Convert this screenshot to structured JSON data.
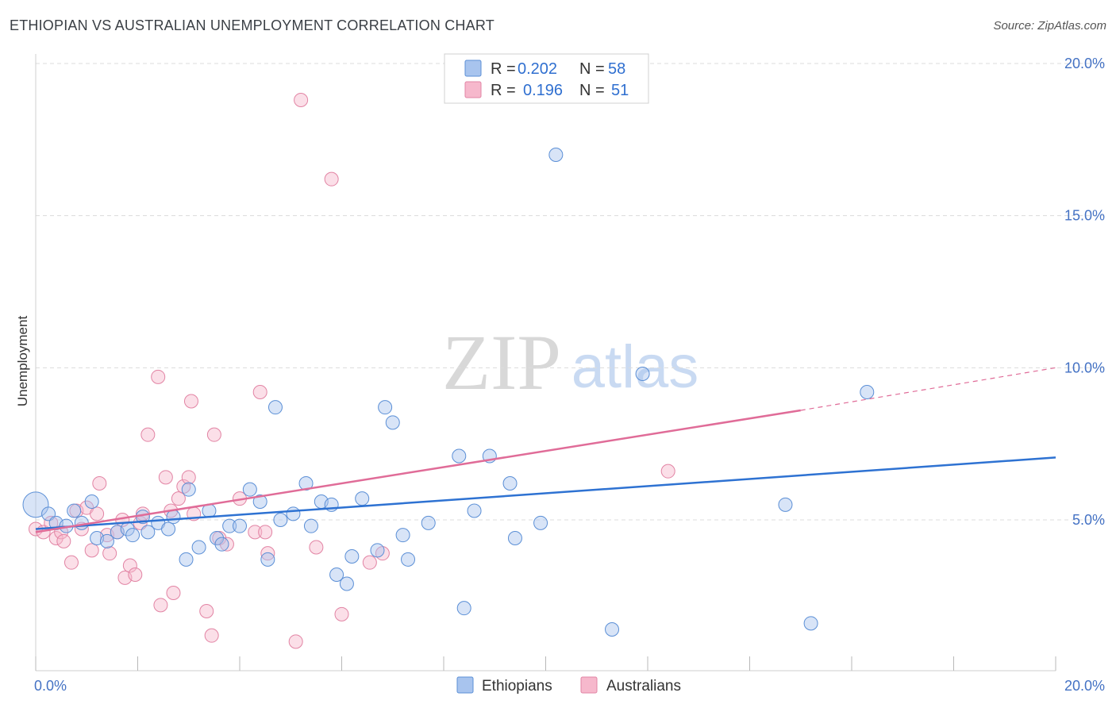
{
  "title": "ETHIOPIAN VS AUSTRALIAN UNEMPLOYMENT CORRELATION CHART",
  "source": "Source: ZipAtlas.com",
  "watermark": {
    "zip": "ZIP",
    "atlas": "atlas"
  },
  "colors": {
    "blue_fill": "#a8c4ee",
    "blue_stroke": "#5b8fd6",
    "blue_line": "#2e72d2",
    "pink_fill": "#f6b8cc",
    "pink_stroke": "#e284a4",
    "pink_line": "#e06c98",
    "tick": "#4472c4",
    "grid": "#dcdcdc"
  },
  "legend": {
    "r_label": "R =",
    "n_label": "N =",
    "rows": [
      {
        "r": "0.202",
        "n": "58"
      },
      {
        "r": "0.196",
        "n": "51"
      }
    ]
  },
  "chart_data": {
    "type": "scatter",
    "title": "ETHIOPIAN VS AUSTRALIAN UNEMPLOYMENT CORRELATION CHART",
    "xlabel": "",
    "ylabel": "Unemployment",
    "xlim": [
      0,
      20
    ],
    "ylim": [
      0,
      20.5
    ],
    "x_tick_labels": [
      "0.0%",
      "20.0%"
    ],
    "y_ticks": [
      5,
      10,
      15,
      20
    ],
    "y_tick_labels": [
      "5.0%",
      "10.0%",
      "15.0%",
      "20.0%"
    ],
    "series": [
      {
        "name": "Ethiopians",
        "r": 0.202,
        "n": 58,
        "trend": {
          "x0": 0,
          "y0": 4.7,
          "x1": 20,
          "y1": 7.05
        },
        "points": [
          [
            0.0,
            5.5
          ],
          [
            0.25,
            5.2
          ],
          [
            0.4,
            4.9
          ],
          [
            0.6,
            4.8
          ],
          [
            0.75,
            5.3
          ],
          [
            0.9,
            4.9
          ],
          [
            1.1,
            5.6
          ],
          [
            1.2,
            4.4
          ],
          [
            1.4,
            4.3
          ],
          [
            1.6,
            4.6
          ],
          [
            1.8,
            4.7
          ],
          [
            1.9,
            4.5
          ],
          [
            2.1,
            5.1
          ],
          [
            2.2,
            4.6
          ],
          [
            2.4,
            4.9
          ],
          [
            2.6,
            4.7
          ],
          [
            2.7,
            5.1
          ],
          [
            2.95,
            3.7
          ],
          [
            3.0,
            6.0
          ],
          [
            3.2,
            4.1
          ],
          [
            3.4,
            5.3
          ],
          [
            3.55,
            4.4
          ],
          [
            3.65,
            4.2
          ],
          [
            3.8,
            4.8
          ],
          [
            4.0,
            4.8
          ],
          [
            4.2,
            6.0
          ],
          [
            4.4,
            5.6
          ],
          [
            4.55,
            3.7
          ],
          [
            4.7,
            8.7
          ],
          [
            4.8,
            5.0
          ],
          [
            5.05,
            5.2
          ],
          [
            5.3,
            6.2
          ],
          [
            5.4,
            4.8
          ],
          [
            5.6,
            5.6
          ],
          [
            5.8,
            5.5
          ],
          [
            5.9,
            3.2
          ],
          [
            6.1,
            2.9
          ],
          [
            6.2,
            3.8
          ],
          [
            6.4,
            5.7
          ],
          [
            6.7,
            4.0
          ],
          [
            6.85,
            8.7
          ],
          [
            7.0,
            8.2
          ],
          [
            7.2,
            4.5
          ],
          [
            7.3,
            3.7
          ],
          [
            7.7,
            4.9
          ],
          [
            8.3,
            7.1
          ],
          [
            8.4,
            2.1
          ],
          [
            8.6,
            5.3
          ],
          [
            8.9,
            7.1
          ],
          [
            9.3,
            6.2
          ],
          [
            9.4,
            4.4
          ],
          [
            9.9,
            4.9
          ],
          [
            10.2,
            17.0
          ],
          [
            11.3,
            1.4
          ],
          [
            11.9,
            9.8
          ],
          [
            14.7,
            5.5
          ],
          [
            15.2,
            1.6
          ],
          [
            16.3,
            9.2
          ]
        ]
      },
      {
        "name": "Australians",
        "r": 0.196,
        "n": 51,
        "trend": {
          "x0": 0,
          "y0": 4.6,
          "x1": 15.0,
          "y1": 8.6,
          "dash_x1": 20,
          "dash_y1": 10.0
        },
        "points": [
          [
            0.0,
            4.7
          ],
          [
            0.15,
            4.6
          ],
          [
            0.3,
            4.9
          ],
          [
            0.4,
            4.4
          ],
          [
            0.5,
            4.6
          ],
          [
            0.55,
            4.3
          ],
          [
            0.7,
            3.6
          ],
          [
            0.8,
            5.3
          ],
          [
            0.9,
            4.7
          ],
          [
            1.0,
            5.4
          ],
          [
            1.1,
            4.0
          ],
          [
            1.2,
            5.2
          ],
          [
            1.25,
            6.2
          ],
          [
            1.4,
            4.5
          ],
          [
            1.45,
            3.9
          ],
          [
            1.6,
            4.6
          ],
          [
            1.7,
            5.0
          ],
          [
            1.75,
            3.1
          ],
          [
            1.85,
            3.5
          ],
          [
            1.95,
            3.2
          ],
          [
            2.05,
            4.9
          ],
          [
            2.1,
            5.2
          ],
          [
            2.2,
            7.8
          ],
          [
            2.4,
            9.7
          ],
          [
            2.45,
            2.2
          ],
          [
            2.55,
            6.4
          ],
          [
            2.65,
            5.3
          ],
          [
            2.7,
            2.6
          ],
          [
            2.8,
            5.7
          ],
          [
            2.9,
            6.1
          ],
          [
            3.0,
            6.4
          ],
          [
            3.05,
            8.9
          ],
          [
            3.1,
            5.2
          ],
          [
            3.35,
            2.0
          ],
          [
            3.45,
            1.2
          ],
          [
            3.5,
            7.8
          ],
          [
            3.6,
            4.4
          ],
          [
            3.75,
            4.2
          ],
          [
            4.0,
            5.7
          ],
          [
            4.3,
            4.6
          ],
          [
            4.4,
            9.2
          ],
          [
            4.5,
            4.6
          ],
          [
            4.55,
            3.9
          ],
          [
            5.1,
            1.0
          ],
          [
            5.2,
            18.8
          ],
          [
            5.5,
            4.1
          ],
          [
            5.8,
            16.2
          ],
          [
            6.0,
            1.9
          ],
          [
            6.55,
            3.6
          ],
          [
            6.8,
            3.9
          ],
          [
            12.4,
            6.6
          ]
        ]
      }
    ]
  }
}
